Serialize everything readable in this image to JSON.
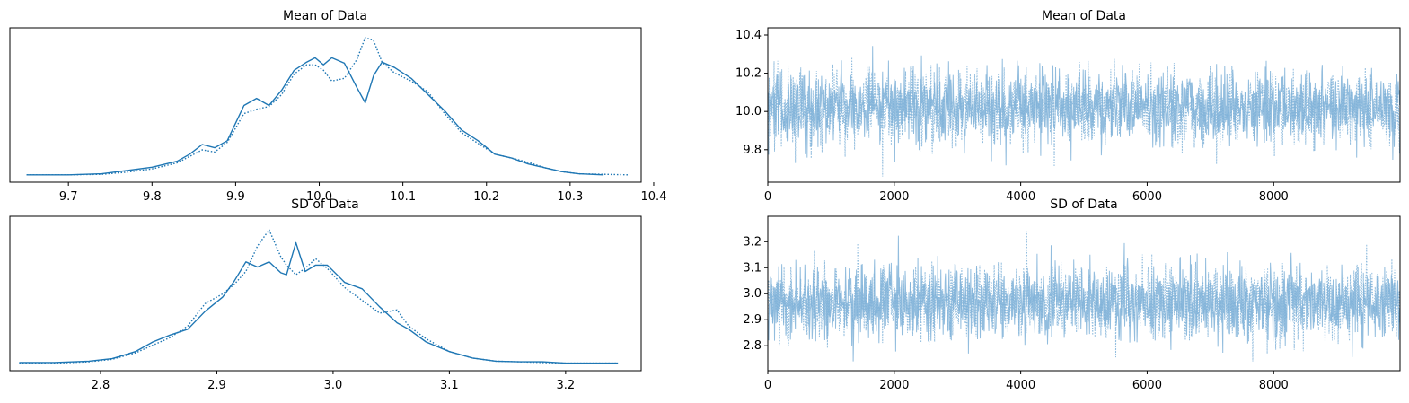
{
  "chart_data": [
    {
      "type": "line",
      "kind": "density",
      "title": "Mean of Data",
      "xlabel": "",
      "ylabel": "",
      "xlim": [
        9.63,
        10.385
      ],
      "x_ticks": [
        "9.7",
        "9.8",
        "9.9",
        "10.0",
        "10.1",
        "10.2",
        "10.3",
        "10.4"
      ],
      "y_ticks_shown": false,
      "color": "#1f77b4",
      "series": [
        {
          "line_style": "solid",
          "x": [
            9.65,
            9.7,
            9.74,
            9.77,
            9.8,
            9.83,
            9.845,
            9.86,
            9.875,
            9.89,
            9.91,
            9.925,
            9.94,
            9.955,
            9.97,
            9.985,
            9.995,
            10.005,
            10.015,
            10.03,
            10.045,
            10.055,
            10.065,
            10.075,
            10.09,
            10.11,
            10.13,
            10.15,
            10.17,
            10.19,
            10.21,
            10.23,
            10.25,
            10.27,
            10.29,
            10.31,
            10.34
          ],
          "y": [
            0.2,
            0.2,
            0.4,
            1.0,
            1.6,
            2.7,
            4.0,
            5.8,
            5.2,
            6.5,
            13.0,
            14.3,
            13.0,
            15.8,
            19.5,
            21.0,
            21.8,
            20.5,
            21.8,
            20.8,
            16.3,
            13.5,
            18.5,
            21.0,
            20.0,
            18.0,
            15.0,
            12.0,
            8.5,
            6.5,
            4.0,
            3.3,
            2.2,
            1.5,
            0.8,
            0.4,
            0.2
          ]
        },
        {
          "line_style": "dotted",
          "x": [
            9.65,
            9.7,
            9.74,
            9.77,
            9.8,
            9.83,
            9.845,
            9.86,
            9.875,
            9.89,
            9.91,
            9.925,
            9.94,
            9.955,
            9.97,
            9.985,
            9.995,
            10.005,
            10.015,
            10.03,
            10.045,
            10.055,
            10.065,
            10.075,
            10.09,
            10.11,
            10.13,
            10.15,
            10.17,
            10.19,
            10.21,
            10.23,
            10.25,
            10.27,
            10.29,
            10.31,
            10.37
          ],
          "y": [
            0.2,
            0.2,
            0.3,
            0.7,
            1.3,
            2.4,
            3.6,
            4.8,
            4.4,
            6.2,
            11.5,
            12.3,
            12.8,
            15.0,
            18.8,
            20.5,
            20.5,
            19.5,
            17.5,
            18.0,
            21.5,
            25.5,
            25.0,
            21.0,
            19.0,
            17.5,
            15.5,
            11.5,
            8.0,
            6.0,
            4.0,
            3.3,
            2.5,
            1.5,
            0.8,
            0.4,
            0.2
          ]
        }
      ],
      "ylim": [
        0,
        26
      ]
    },
    {
      "type": "line",
      "kind": "trace",
      "title": "Mean of Data",
      "xlabel": "",
      "ylabel": "",
      "xlim": [
        0,
        9999
      ],
      "ylim": [
        9.63,
        10.4
      ],
      "x_ticks": [
        "0",
        "2000",
        "4000",
        "6000",
        "8000"
      ],
      "y_ticks": [
        "9.8",
        "10.0",
        "10.2",
        "10.4"
      ],
      "color": "#7fb2d8",
      "trace_stats": {
        "center": 10.02,
        "spread": 0.095,
        "min": 9.66,
        "max": 10.36,
        "draws": 10000
      }
    },
    {
      "type": "line",
      "kind": "density",
      "title": "SD of Data",
      "xlabel": "",
      "ylabel": "",
      "xlim": [
        2.722,
        3.265
      ],
      "x_ticks": [
        "2.8",
        "2.9",
        "3.0",
        "3.1",
        "3.2"
      ],
      "y_ticks_shown": false,
      "color": "#1f77b4",
      "series": [
        {
          "line_style": "solid",
          "x": [
            2.73,
            2.76,
            2.79,
            2.81,
            2.83,
            2.845,
            2.86,
            2.875,
            2.89,
            2.905,
            2.915,
            2.925,
            2.935,
            2.945,
            2.955,
            2.96,
            2.968,
            2.976,
            2.985,
            2.995,
            3.01,
            3.025,
            3.04,
            3.055,
            3.065,
            3.08,
            3.1,
            3.12,
            3.14,
            3.16,
            3.18,
            3.2,
            3.245
          ],
          "y": [
            0.3,
            0.3,
            0.5,
            0.9,
            2.0,
            3.5,
            4.6,
            5.5,
            8.3,
            10.5,
            13.0,
            16.0,
            15.2,
            16.0,
            14.3,
            14.0,
            19.0,
            14.5,
            15.5,
            15.5,
            12.8,
            11.8,
            9.0,
            6.5,
            5.5,
            3.5,
            2.0,
            1.0,
            0.5,
            0.4,
            0.4,
            0.2,
            0.2
          ]
        },
        {
          "line_style": "dotted",
          "x": [
            2.73,
            2.76,
            2.79,
            2.81,
            2.83,
            2.845,
            2.86,
            2.875,
            2.89,
            2.905,
            2.915,
            2.925,
            2.935,
            2.945,
            2.955,
            2.96,
            2.968,
            2.976,
            2.985,
            2.995,
            3.01,
            3.025,
            3.04,
            3.055,
            3.065,
            3.08,
            3.1,
            3.12,
            3.14,
            3.16,
            3.18,
            3.2,
            3.245
          ],
          "y": [
            0.2,
            0.2,
            0.4,
            0.8,
            1.8,
            3.0,
            4.2,
            6.0,
            9.5,
            11.0,
            12.5,
            14.5,
            18.5,
            21.0,
            16.8,
            15.5,
            14.0,
            15.0,
            16.5,
            15.0,
            12.0,
            10.0,
            8.0,
            8.5,
            6.0,
            4.0,
            2.0,
            1.0,
            0.5,
            0.4,
            0.3,
            0.2,
            0.2
          ]
        }
      ],
      "ylim": [
        0,
        22
      ]
    },
    {
      "type": "line",
      "kind": "trace",
      "title": "SD of Data",
      "xlabel": "",
      "ylabel": "",
      "xlim": [
        0,
        9999
      ],
      "ylim": [
        2.704,
        3.27
      ],
      "x_ticks": [
        "0",
        "2000",
        "4000",
        "6000",
        "8000"
      ],
      "y_ticks": [
        "2.8",
        "2.9",
        "3.0",
        "3.1",
        "3.2"
      ],
      "color": "#7fb2d8",
      "trace_stats": {
        "center": 2.965,
        "spread": 0.07,
        "min": 2.74,
        "max": 3.24,
        "draws": 10000
      }
    }
  ]
}
